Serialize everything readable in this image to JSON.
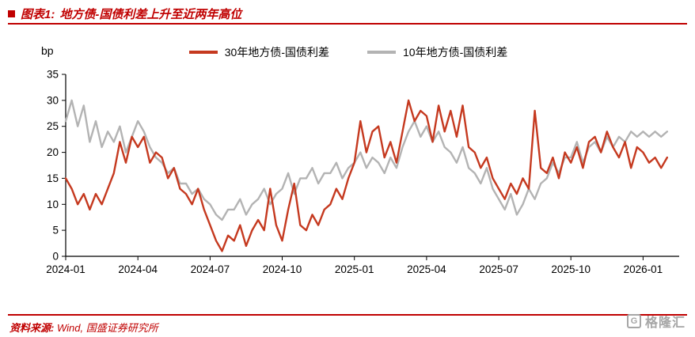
{
  "header": {
    "title_prefix": "图表1:",
    "title_text": "地方债-国债利差上升至近两年高位"
  },
  "chart_data": {
    "type": "line",
    "title": "地方债-国债利差上升至近两年高位",
    "ylabel": "bp",
    "ylim": [
      0,
      35
    ],
    "yticks": [
      0,
      5,
      10,
      15,
      20,
      25,
      30,
      35
    ],
    "x_step_months": 0.25,
    "x_range_months": [
      0,
      25.5
    ],
    "x_tick_months": [
      0,
      3,
      6,
      9,
      12,
      15,
      18,
      21,
      24
    ],
    "x_tick_labels": [
      "2024-01",
      "2024-04",
      "2024-07",
      "2024-10",
      "2025-01",
      "2025-04",
      "2025-07",
      "2025-10",
      "2026-01"
    ],
    "grid": false,
    "legend_position": "top",
    "series": [
      {
        "name": "30年地方债-国债利差",
        "color": "#c5391f",
        "values": [
          15,
          13,
          10,
          12,
          9,
          12,
          10,
          13,
          16,
          22,
          18,
          23,
          21,
          23,
          18,
          20,
          19,
          15,
          17,
          13,
          12,
          10,
          13,
          9,
          6,
          3,
          1,
          4,
          3,
          6,
          2,
          5,
          7,
          5,
          13,
          6,
          3,
          9,
          14,
          6,
          5,
          8,
          6,
          9,
          10,
          13,
          11,
          15,
          18,
          26,
          20,
          24,
          25,
          19,
          22,
          18,
          24,
          30,
          26,
          28,
          27,
          22,
          29,
          24,
          28,
          23,
          29,
          21,
          20,
          17,
          19,
          15,
          13,
          11,
          14,
          12,
          15,
          13,
          28,
          17,
          16,
          19,
          15,
          20,
          18,
          21,
          17,
          22,
          23,
          20,
          24,
          21,
          19,
          22,
          17,
          21,
          20,
          18,
          19,
          17,
          19
        ]
      },
      {
        "name": "10年地方债-国债利差",
        "color": "#b3b3b3",
        "values": [
          26,
          30,
          25,
          29,
          22,
          26,
          21,
          24,
          22,
          25,
          20,
          23,
          26,
          24,
          21,
          19,
          18,
          16,
          17,
          14,
          14,
          12,
          13,
          11,
          10,
          8,
          7,
          9,
          9,
          11,
          8,
          10,
          11,
          13,
          10,
          12,
          13,
          16,
          12,
          15,
          15,
          17,
          14,
          16,
          16,
          18,
          15,
          17,
          18,
          20,
          17,
          19,
          18,
          16,
          19,
          17,
          21,
          24,
          26,
          23,
          25,
          22,
          24,
          21,
          20,
          18,
          21,
          17,
          16,
          14,
          17,
          13,
          11,
          9,
          12,
          8,
          10,
          13,
          11,
          14,
          15,
          18,
          16,
          19,
          19,
          22,
          18,
          21,
          22,
          20,
          23,
          21,
          23,
          22,
          24,
          23,
          24,
          23,
          24,
          23,
          24
        ]
      }
    ]
  },
  "footer": {
    "source_label": "资料来源:",
    "source_text": "Wind, 国盛证券研究所",
    "logo_letter": "G",
    "logo_text": "格隆汇"
  },
  "colors": {
    "accent": "#c00000",
    "red_line": "#c5391f",
    "gray_line": "#b3b3b3"
  }
}
